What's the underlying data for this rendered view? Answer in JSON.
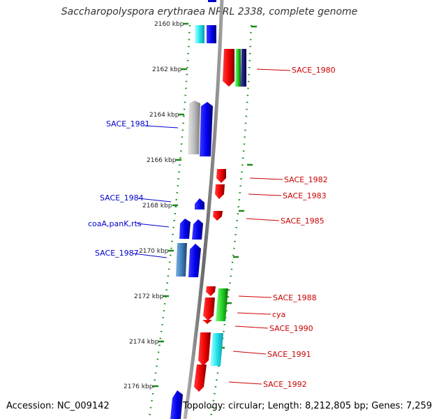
{
  "title": "Saccharopolyspora erythraea NRRL 2338, complete genome",
  "accession": "Accession: NC_009142",
  "stats": "Topology: circular; Length: 8,212,805 bp; Genes: 7,259",
  "ruler": [
    "2160 kbp",
    "2162 kbp",
    "2164 kbp",
    "2166 kbp",
    "2168 kbp",
    "2170 kbp",
    "2172 kbp",
    "2174 kbp",
    "2176 kbp"
  ],
  "labels": {
    "reverse": [
      "SACE_1981",
      "SACE_1984",
      "coaA,panK,rts",
      "SACE_1987"
    ],
    "forward": [
      "SACE_1980",
      "SACE_1982",
      "SACE_1983",
      "SACE_1985",
      "SACE_1988",
      "cya",
      "SACE_1990",
      "SACE_1991",
      "SACE_1992"
    ]
  },
  "colors": {
    "reverse_label": "#0000cc",
    "forward_label": "#cc0000",
    "backbone": "#808080",
    "tick": "#1a8a1a"
  }
}
